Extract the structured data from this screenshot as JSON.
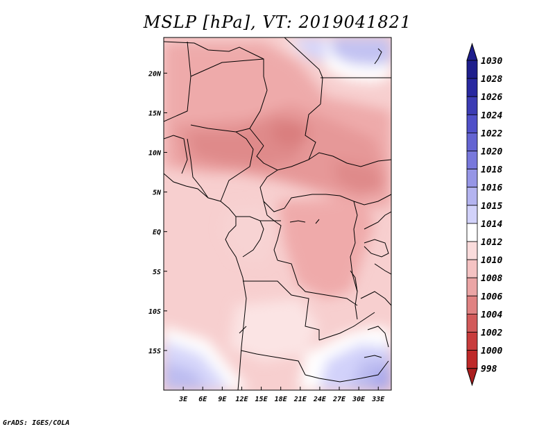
{
  "title": "MSLP [hPa], VT: 2019041821",
  "credit": "GrADS: IGES/COLA",
  "map": {
    "variable": "MSLP",
    "units": "hPa",
    "valid_time": "2019041821",
    "lon_range": [
      0,
      35
    ],
    "lat_range": [
      -20,
      24.5
    ],
    "x_ticks": [
      "3E",
      "6E",
      "9E",
      "12E",
      "15E",
      "18E",
      "21E",
      "24E",
      "27E",
      "30E",
      "33E"
    ],
    "x_tick_values": [
      3,
      6,
      9,
      12,
      15,
      18,
      21,
      24,
      27,
      30,
      33
    ],
    "y_ticks": [
      "20N",
      "15N",
      "10N",
      "5N",
      "EQ",
      "5S",
      "10S",
      "15S"
    ],
    "y_tick_values": [
      20,
      15,
      10,
      5,
      0,
      -5,
      -10,
      -15
    ]
  },
  "colorbar": {
    "labels": [
      "1030",
      "1028",
      "1026",
      "1024",
      "1022",
      "1020",
      "1018",
      "1016",
      "1015",
      "1014",
      "1012",
      "1010",
      "1008",
      "1006",
      "1004",
      "1002",
      "1000",
      "998"
    ],
    "colors": [
      "#1e1e8c",
      "#2828a0",
      "#3c3cb4",
      "#5050c8",
      "#6464d2",
      "#7878dc",
      "#9696e6",
      "#b4b4f0",
      "#d2d2fa",
      "#ffffff",
      "#fadcdc",
      "#f5c3c3",
      "#eba5a5",
      "#e08282",
      "#d25a5a",
      "#c83c3c",
      "#be2828",
      "#aa1e1e"
    ]
  }
}
